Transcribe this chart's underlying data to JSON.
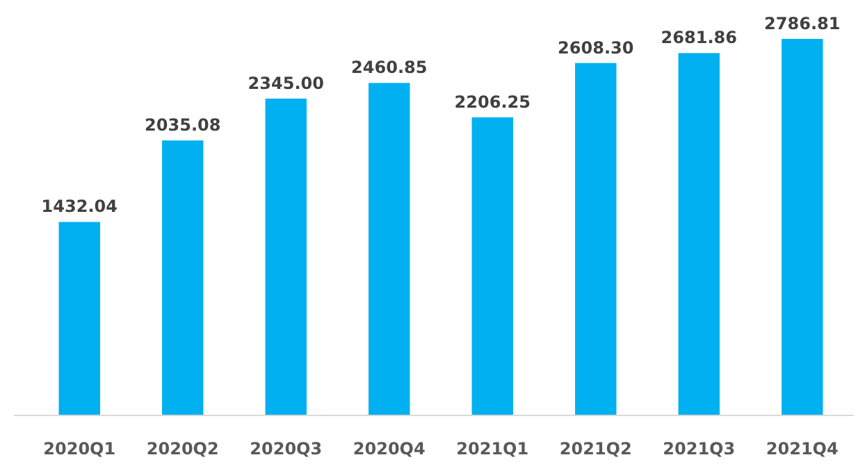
{
  "chart_data": {
    "type": "bar",
    "categories": [
      "2020Q1",
      "2020Q2",
      "2020Q3",
      "2020Q4",
      "2021Q1",
      "2021Q2",
      "2021Q3",
      "2021Q4"
    ],
    "values": [
      1432.04,
      2035.08,
      2345.0,
      2460.85,
      2206.25,
      2608.3,
      2681.86,
      2786.81
    ],
    "value_labels": [
      "1432.04",
      "2035.08",
      "2345.00",
      "2460.85",
      "2206.25",
      "2608.30",
      "2681.86",
      "2786.81"
    ],
    "color": "#00b0f0"
  }
}
